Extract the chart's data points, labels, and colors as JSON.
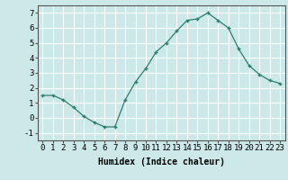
{
  "x": [
    0,
    1,
    2,
    3,
    4,
    5,
    6,
    7,
    8,
    9,
    10,
    11,
    12,
    13,
    14,
    15,
    16,
    17,
    18,
    19,
    20,
    21,
    22,
    23
  ],
  "y": [
    1.5,
    1.5,
    1.2,
    0.7,
    0.1,
    -0.3,
    -0.6,
    -0.6,
    1.2,
    2.4,
    3.3,
    4.4,
    5.0,
    5.8,
    6.5,
    6.6,
    7.0,
    6.5,
    6.0,
    4.6,
    3.5,
    2.9,
    2.5,
    2.3
  ],
  "xlabel": "Humidex (Indice chaleur)",
  "xlim": [
    -0.5,
    23.5
  ],
  "ylim": [
    -1.5,
    7.5
  ],
  "yticks": [
    -1,
    0,
    1,
    2,
    3,
    4,
    5,
    6,
    7
  ],
  "xticks": [
    0,
    1,
    2,
    3,
    4,
    5,
    6,
    7,
    8,
    9,
    10,
    11,
    12,
    13,
    14,
    15,
    16,
    17,
    18,
    19,
    20,
    21,
    22,
    23
  ],
  "line_color": "#2e7d6e",
  "marker": "+",
  "bg_color": "#cce8e8",
  "grid_color": "#ffffff",
  "xlabel_fontsize": 7,
  "tick_fontsize": 6.5,
  "spine_color": "#555555"
}
